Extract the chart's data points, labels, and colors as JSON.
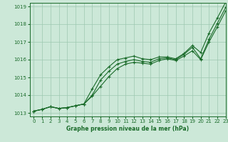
{
  "title": "Graphe pression niveau de la mer (hPa)",
  "bg_color": "#cce8d8",
  "line_color": "#1a6b2a",
  "grid_color": "#9ec8b0",
  "xlim": [
    -0.5,
    23
  ],
  "ylim": [
    1012.8,
    1019.2
  ],
  "yticks": [
    1013,
    1014,
    1015,
    1016,
    1017,
    1018,
    1019
  ],
  "xticks": [
    0,
    1,
    2,
    3,
    4,
    5,
    6,
    7,
    8,
    9,
    10,
    11,
    12,
    13,
    14,
    15,
    16,
    17,
    18,
    19,
    20,
    21,
    22,
    23
  ],
  "series": [
    [
      1013.1,
      1013.2,
      1013.35,
      1013.25,
      1013.3,
      1013.4,
      1013.5,
      1014.35,
      1015.15,
      1015.6,
      1016.0,
      1016.1,
      1016.2,
      1016.05,
      1016.0,
      1016.15,
      1016.15,
      1016.05,
      1016.35,
      1016.8,
      1016.4,
      1017.5,
      1018.35,
      1019.25
    ],
    [
      1013.1,
      1013.2,
      1013.35,
      1013.25,
      1013.3,
      1013.4,
      1013.5,
      1014.0,
      1014.85,
      1015.35,
      1015.75,
      1015.9,
      1016.0,
      1015.9,
      1015.85,
      1016.05,
      1016.1,
      1016.0,
      1016.3,
      1016.7,
      1016.05,
      1017.15,
      1018.05,
      1018.95
    ],
    [
      1013.1,
      1013.2,
      1013.35,
      1013.25,
      1013.3,
      1013.4,
      1013.5,
      1013.95,
      1014.5,
      1015.05,
      1015.5,
      1015.75,
      1015.85,
      1015.8,
      1015.75,
      1015.95,
      1016.05,
      1015.95,
      1016.2,
      1016.5,
      1016.0,
      1017.0,
      1017.85,
      1018.75
    ]
  ],
  "marker_size": 3.5,
  "marker_lw": 0.8,
  "line_lw": 0.8,
  "tick_labelsize": 5,
  "xlabel_fontsize": 5.5,
  "xlabel_fontweight": "bold"
}
